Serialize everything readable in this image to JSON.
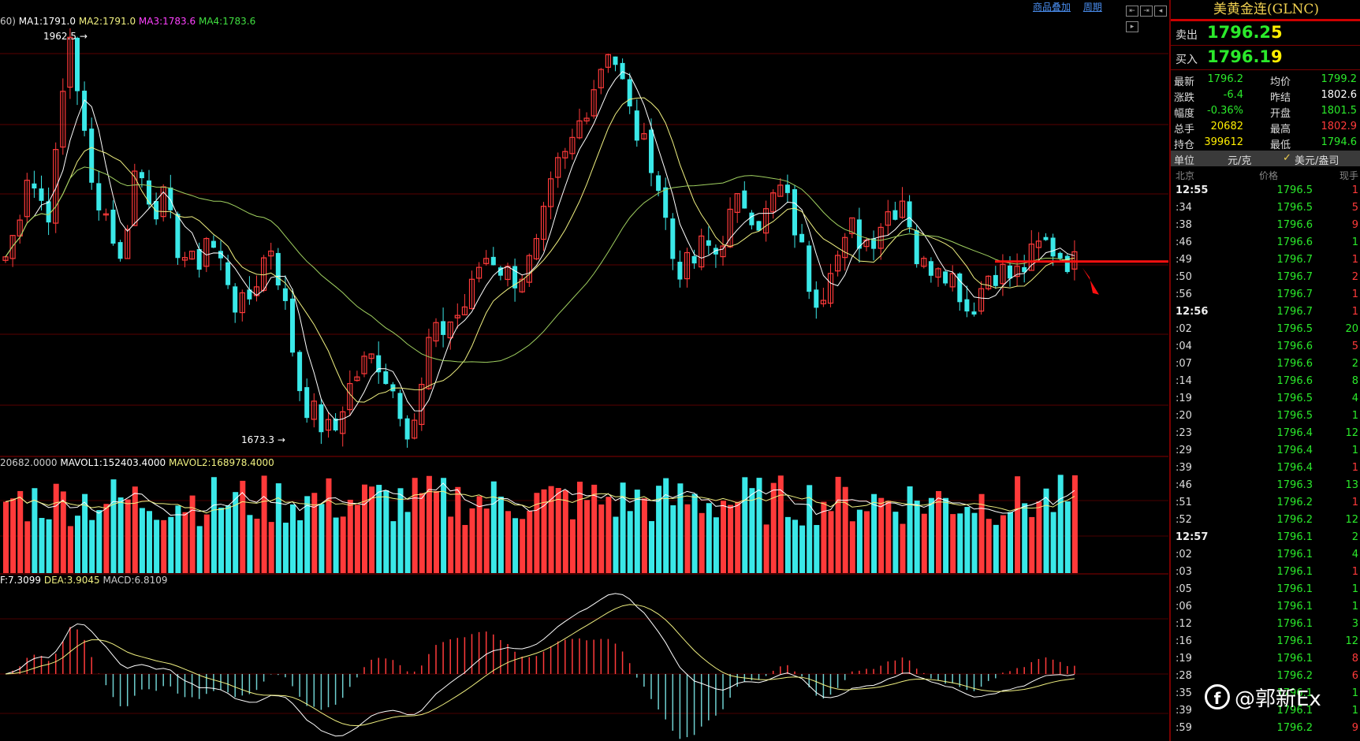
{
  "toolbar": {
    "overlay_link": "商品叠加",
    "period_link": "周期"
  },
  "main_legend": {
    "prefix": "60)",
    "ma1": "MA1:1791.0",
    "ma2": "MA2:1791.0",
    "ma3": "MA3:1783.6",
    "ma4": "MA4:1783.6"
  },
  "high_label": "1962.5",
  "low_label": "1673.3",
  "vol_legend": {
    "vol": "20682.0000",
    "mavol1": "MAVOL1:152403.4000",
    "mavol2": "MAVOL2:168978.4000"
  },
  "macd_legend": {
    "diff": "F:7.3099",
    "dea": "DEA:3.9045",
    "macd": "MACD:6.8109"
  },
  "colors": {
    "up": "#ff3a3a",
    "down": "#3ae8e8",
    "ma1": "#ffffff",
    "ma2": "#f0f080",
    "ma3": "#ff40ff",
    "ma4": "#40e040",
    "support_line": "#ff1010"
  },
  "chart_data": {
    "type": "candlestick",
    "y_range": [
      1665,
      1970
    ],
    "support_level": 1796.5,
    "price_path": [
      1800,
      1820,
      1860,
      1845,
      1830,
      1880,
      1962,
      1910,
      1850,
      1840,
      1820,
      1790,
      1860,
      1855,
      1835,
      1840,
      1810,
      1800,
      1790,
      1815,
      1800,
      1785,
      1760,
      1770,
      1790,
      1810,
      1780,
      1740,
      1700,
      1690,
      1680,
      1673,
      1700,
      1715,
      1725,
      1730,
      1715,
      1700,
      1680,
      1690,
      1740,
      1745,
      1755,
      1760,
      1775,
      1800,
      1800,
      1790,
      1785,
      1790,
      1800,
      1830,
      1860,
      1870,
      1890,
      1910,
      1930,
      1950,
      1930,
      1900,
      1880,
      1870,
      1840,
      1800,
      1790,
      1795,
      1810,
      1800,
      1820,
      1835,
      1840,
      1825,
      1830,
      1850,
      1835,
      1810,
      1780,
      1770,
      1800,
      1800,
      1820,
      1810,
      1815,
      1830,
      1835,
      1845,
      1800,
      1790,
      1800,
      1790,
      1780,
      1760,
      1775,
      1790,
      1790,
      1785,
      1790,
      1800,
      1810,
      1805,
      1800,
      1795
    ],
    "candle_count": 150,
    "volume_count": 150,
    "sidebar": {
      "title": "美黄金连(GLNC)",
      "ask": {
        "label": "卖出",
        "price": "1796.2",
        "vol": "5"
      },
      "bid": {
        "label": "买入",
        "price": "1796.1",
        "vol": "9"
      },
      "quotes": [
        {
          "k1": "最新",
          "v1": "1796.2",
          "c1": "#2bea2b",
          "k2": "均价",
          "v2": "1799.2",
          "c2": "#2bea2b"
        },
        {
          "k1": "涨跌",
          "v1": "-6.4",
          "c1": "#2bea2b",
          "k2": "昨结",
          "v2": "1802.6",
          "c2": "#ffffff"
        },
        {
          "k1": "幅度",
          "v1": "-0.36%",
          "c1": "#2bea2b",
          "k2": "开盘",
          "v2": "1801.5",
          "c2": "#2bea2b"
        },
        {
          "k1": "总手",
          "v1": "20682",
          "c1": "#ffee00",
          "k2": "最高",
          "v2": "1802.9",
          "c2": "#ff3a3a"
        },
        {
          "k1": "持仓",
          "v1": "399612",
          "c1": "#ffee00",
          "k2": "最低",
          "v2": "1794.6",
          "c2": "#2bea2b"
        }
      ],
      "unit": {
        "label": "单位",
        "opt1": "元/克",
        "opt2": "美元/盎司"
      },
      "tick_header": {
        "time": "北京",
        "price": "价格",
        "qty": "现手"
      },
      "ticks": [
        {
          "t": "12:55",
          "p": "1796.5",
          "q": "1",
          "c": "#ff3a3a",
          "big": true
        },
        {
          "t": ":34",
          "p": "1796.5",
          "q": "5",
          "c": "#ff3a3a"
        },
        {
          "t": ":38",
          "p": "1796.6",
          "q": "9",
          "c": "#ff3a3a"
        },
        {
          "t": ":46",
          "p": "1796.6",
          "q": "1",
          "c": "#2bea2b"
        },
        {
          "t": ":49",
          "p": "1796.7",
          "q": "1",
          "c": "#ff3a3a"
        },
        {
          "t": ":50",
          "p": "1796.7",
          "q": "2",
          "c": "#ff3a3a"
        },
        {
          "t": ":56",
          "p": "1796.7",
          "q": "1",
          "c": "#ff3a3a"
        },
        {
          "t": "12:56",
          "p": "1796.7",
          "q": "1",
          "c": "#ff3a3a",
          "big": true
        },
        {
          "t": ":02",
          "p": "1796.5",
          "q": "20",
          "c": "#2bea2b"
        },
        {
          "t": ":04",
          "p": "1796.6",
          "q": "5",
          "c": "#ff3a3a"
        },
        {
          "t": ":07",
          "p": "1796.6",
          "q": "2",
          "c": "#2bea2b"
        },
        {
          "t": ":14",
          "p": "1796.6",
          "q": "8",
          "c": "#2bea2b"
        },
        {
          "t": ":19",
          "p": "1796.5",
          "q": "4",
          "c": "#2bea2b"
        },
        {
          "t": ":20",
          "p": "1796.5",
          "q": "1",
          "c": "#2bea2b"
        },
        {
          "t": ":23",
          "p": "1796.4",
          "q": "12",
          "c": "#2bea2b"
        },
        {
          "t": ":29",
          "p": "1796.4",
          "q": "1",
          "c": "#2bea2b"
        },
        {
          "t": ":39",
          "p": "1796.4",
          "q": "1",
          "c": "#ff3a3a"
        },
        {
          "t": ":46",
          "p": "1796.3",
          "q": "13",
          "c": "#2bea2b"
        },
        {
          "t": ":51",
          "p": "1796.2",
          "q": "1",
          "c": "#ff3a3a"
        },
        {
          "t": ":52",
          "p": "1796.2",
          "q": "12",
          "c": "#2bea2b"
        },
        {
          "t": "12:57",
          "p": "1796.1",
          "q": "2",
          "c": "#2bea2b",
          "big": true
        },
        {
          "t": ":02",
          "p": "1796.1",
          "q": "4",
          "c": "#2bea2b"
        },
        {
          "t": ":03",
          "p": "1796.1",
          "q": "1",
          "c": "#ff3a3a"
        },
        {
          "t": ":05",
          "p": "1796.1",
          "q": "1",
          "c": "#2bea2b"
        },
        {
          "t": ":06",
          "p": "1796.1",
          "q": "1",
          "c": "#2bea2b"
        },
        {
          "t": ":12",
          "p": "1796.1",
          "q": "3",
          "c": "#2bea2b"
        },
        {
          "t": ":16",
          "p": "1796.1",
          "q": "12",
          "c": "#2bea2b"
        },
        {
          "t": ":19",
          "p": "1796.1",
          "q": "8",
          "c": "#ff3a3a"
        },
        {
          "t": ":28",
          "p": "1796.2",
          "q": "6",
          "c": "#ff3a3a"
        },
        {
          "t": ":35",
          "p": "1796.1",
          "q": "1",
          "c": "#2bea2b"
        },
        {
          "t": ":39",
          "p": "1796.1",
          "q": "1",
          "c": "#2bea2b"
        },
        {
          "t": ":59",
          "p": "1796.2",
          "q": "9",
          "c": "#ff3a3a"
        }
      ]
    }
  },
  "watermark": {
    "icon": "f",
    "text": "@郭新Ex"
  }
}
